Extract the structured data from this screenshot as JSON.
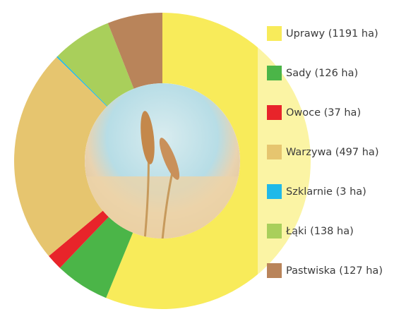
{
  "chart_data": {
    "type": "donut",
    "categories": [
      "Uprawy (1191 ha)",
      "Sady (126 ha)",
      "Owoce (37 ha)",
      "Warzywa (497 ha)",
      "Szklarnie (3 ha)",
      "Łąki (138 ha)",
      "Pastwiska (127 ha)"
    ],
    "values": [
      1191,
      126,
      37,
      497,
      3,
      138,
      127
    ],
    "colors": [
      "#f8eb5a",
      "#4bb548",
      "#e8242a",
      "#e6c56f",
      "#20b9e9",
      "#a9cf5b",
      "#b9845a"
    ]
  }
}
